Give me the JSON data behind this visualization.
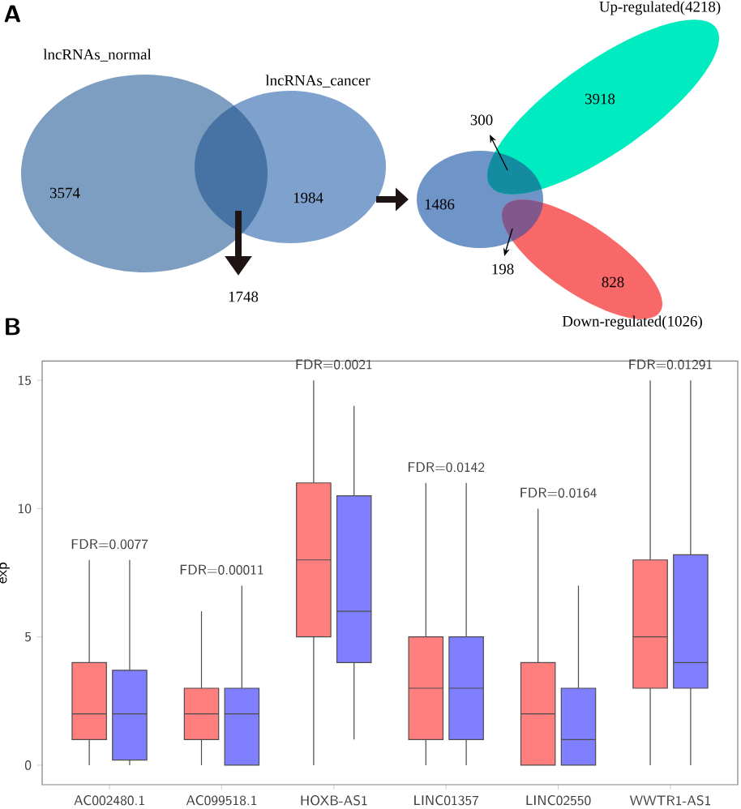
{
  "chart_data": [
    {
      "type": "other",
      "title": "A",
      "annotations": [
        "lncRNAs_normal",
        "lncRNAs_cancer",
        "3574",
        "1984",
        "1748",
        "1486",
        "300",
        "198",
        "3918",
        "828",
        "Up-regulated(4218)",
        "Down-regulated(1026)"
      ]
    },
    {
      "type": "box",
      "title": "B",
      "ylabel": "exp",
      "categories": [
        "AC002480.1",
        "AC099518.1",
        "HOXB-AS1",
        "LINC01357",
        "LINC02550",
        "WWTR1-AS1"
      ],
      "ylim": [
        -0.76,
        15.75
      ],
      "yticks": [
        0,
        5,
        10,
        15
      ],
      "series": [
        {
          "color": "#ff7f7f",
          "boxes": [
            {
              "low": 0,
              "q1": 1,
              "median": 2,
              "q3": 4,
              "high": 8
            },
            {
              "low": 0,
              "q1": 1,
              "median": 2,
              "q3": 3,
              "high": 6
            },
            {
              "low": 0,
              "q1": 5,
              "median": 8,
              "q3": 11,
              "high": 15
            },
            {
              "low": 0,
              "q1": 1,
              "median": 3,
              "q3": 5,
              "high": 11
            },
            {
              "low": 0,
              "q1": 0,
              "median": 2,
              "q3": 4,
              "high": 10
            },
            {
              "low": 0,
              "q1": 3,
              "median": 5,
              "q3": 8,
              "high": 15
            }
          ]
        },
        {
          "color": "#7f7fff",
          "boxes": [
            {
              "low": 0,
              "q1": 0.2,
              "median": 2,
              "q3": 3.7,
              "high": 8
            },
            {
              "low": 0,
              "q1": 0,
              "median": 2,
              "q3": 3,
              "high": 7
            },
            {
              "low": 1,
              "q1": 4,
              "median": 6,
              "q3": 10.5,
              "high": 14
            },
            {
              "low": 0,
              "q1": 1,
              "median": 3,
              "q3": 5,
              "high": 11
            },
            {
              "low": 0,
              "q1": 0,
              "median": 1,
              "q3": 3,
              "high": 7
            },
            {
              "low": 0,
              "q1": 3,
              "median": 4,
              "q3": 8.2,
              "high": 15
            }
          ]
        }
      ],
      "annotations": [
        "FDR=0.0077",
        "FDR=0.00011",
        "FDR=0.0021",
        "FDR=0.0142",
        "FDR=0.0164",
        "FDR=0.01291"
      ]
    }
  ]
}
